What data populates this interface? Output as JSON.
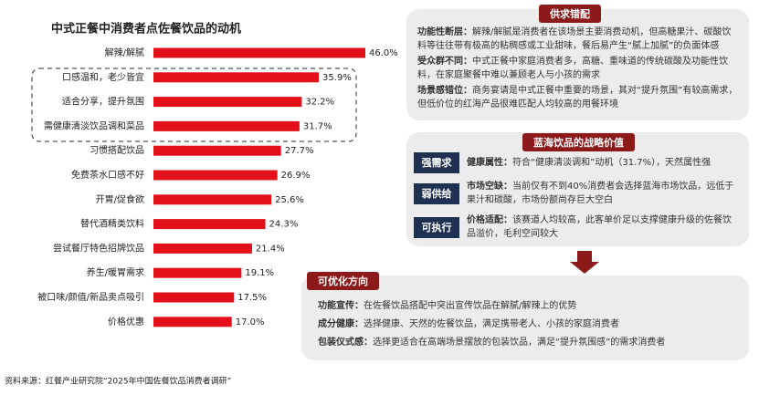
{
  "chart_data": {
    "type": "hbar",
    "title": "中式正餐中消费者点佐餐饮品的动机",
    "categories": [
      "解辣/解腻",
      "口感温和，老少皆宜",
      "适合分享，提升氛围",
      "需健康清淡饮品调和菜品",
      "习惯搭配饮品",
      "免费茶水口感不好",
      "开胃/促食欲",
      "替代酒精类饮料",
      "尝试餐厅特色招牌饮品",
      "养生/暖胃需求",
      "被口味/颜值/新品卖点吸引",
      "价格优惠"
    ],
    "values": [
      46.0,
      35.9,
      32.2,
      31.7,
      27.7,
      26.9,
      25.6,
      24.3,
      21.4,
      19.1,
      17.5,
      17.0
    ],
    "value_labels": [
      "46.0%",
      "35.9%",
      "32.2%",
      "31.7%",
      "27.7%",
      "26.9%",
      "25.6%",
      "24.3%",
      "21.4%",
      "19.1%",
      "17.5%",
      "17.0%"
    ],
    "color": "#e3101a"
  },
  "supply_demand": {
    "title": "供求错配",
    "items": [
      {
        "label": "功能性断层：",
        "text": "解辣/解腻是消费者在该场景主要消费动机，但高糖果汁、碳酸饮料等往往带有极高的粘稠感或工业甜味，餐后易产生“腻上加腻”的负面体感"
      },
      {
        "label": "受众群不同：",
        "text": "中式正餐中家庭消费者多，高糖、重味道的传统碳酸及功能性饮料，在家庭聚餐中难以兼顾老人与小孩的需求"
      },
      {
        "label": "场景感错位：",
        "text": "商务宴请是中式正餐中重要的场景，其对“提升氛围”有较高需求，但低价位的红海产品很难匹配人均较高的用餐环境"
      }
    ]
  },
  "blue_ocean": {
    "title": "蓝海饮品的战略价值",
    "items": [
      {
        "tag": "强需求",
        "label": "健康属性：",
        "text": "符合“健康清淡调和”动机（31.7%），天然属性强"
      },
      {
        "tag": "弱供给",
        "label": "市场空缺：",
        "text": "当前仅有不到40%消费者会选择蓝海市场饮品，远低于果汁和碳酸，市场份额尚存巨大空白"
      },
      {
        "tag": "可执行",
        "label": "价格适配：",
        "text": "该赛道人均较高，此客单价足以支撑健康升级的佐餐饮品溢价，毛利空间较大"
      }
    ]
  },
  "optimize": {
    "title": "可优化方向",
    "items": [
      {
        "label": "功能宣传：",
        "text": "在佐餐饮品搭配中突出宣传饮品在解腻/解辣上的优势"
      },
      {
        "label": "成分健康：",
        "text": "选择健康、天然的佐餐饮品，满足携带老人、小孩的家庭消费者"
      },
      {
        "label": "包装仪式感：",
        "text": "选择更适合在高端场景摆放的包装饮品，满足“提升氛围感”的需求消费者"
      }
    ]
  },
  "source": "资料来源：红餐产业研究院“2025年中国佐餐饮品消费者调研”"
}
